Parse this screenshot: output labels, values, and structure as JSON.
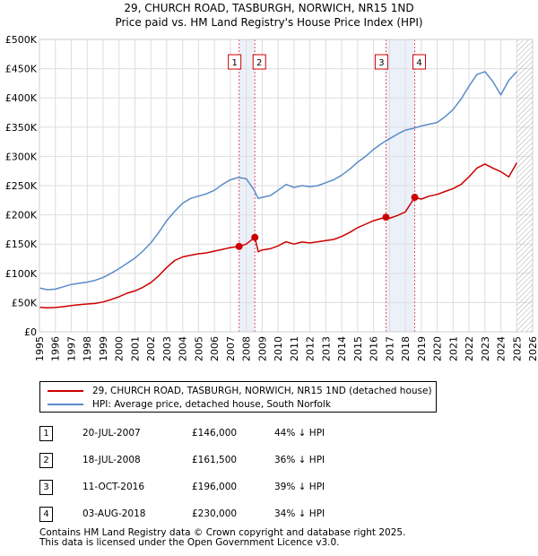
{
  "title_line1": "29, CHURCH ROAD, TASBURGH, NORWICH, NR15 1ND",
  "title_line2": "Price paid vs. HM Land Registry's House Price Index (HPI)",
  "chart_data": {
    "type": "line",
    "xlim": [
      1995,
      2026
    ],
    "ylim": [
      0,
      500000
    ],
    "y_ticks": [
      0,
      50000,
      100000,
      150000,
      200000,
      250000,
      300000,
      350000,
      400000,
      450000,
      500000
    ],
    "y_tick_labels": [
      "£0",
      "£50K",
      "£100K",
      "£150K",
      "£200K",
      "£250K",
      "£300K",
      "£350K",
      "£400K",
      "£450K",
      "£500K"
    ],
    "x_ticks": [
      1995,
      1996,
      1997,
      1998,
      1999,
      2000,
      2001,
      2002,
      2003,
      2004,
      2005,
      2006,
      2007,
      2008,
      2009,
      2010,
      2011,
      2012,
      2013,
      2014,
      2015,
      2016,
      2017,
      2018,
      2019,
      2020,
      2021,
      2022,
      2023,
      2024,
      2025,
      2026
    ],
    "x_tick_labels": [
      "1995",
      "1996",
      "1997",
      "1998",
      "1999",
      "2000",
      "2001",
      "2002",
      "2003",
      "2004",
      "2005",
      "2006",
      "2007",
      "2008",
      "2009",
      "2010",
      "2011",
      "2012",
      "2013",
      "2014",
      "2015",
      "2016",
      "2017",
      "2018",
      "2019",
      "2020",
      "2021",
      "2022",
      "2023",
      "2024",
      "2025",
      "2026"
    ],
    "grid": true,
    "forecast_from": 2025.0,
    "series": [
      {
        "name": "29, CHURCH ROAD, TASBURGH, NORWICH, NR15 1ND (detached house)",
        "color": "#cc0000",
        "x": [
          1995.0,
          1995.5,
          1996.0,
          1996.5,
          1997.0,
          1997.5,
          1998.0,
          1998.5,
          1999.0,
          1999.5,
          2000.0,
          2000.5,
          2001.0,
          2001.5,
          2002.0,
          2002.5,
          2003.0,
          2003.5,
          2004.0,
          2004.5,
          2005.0,
          2005.5,
          2006.0,
          2006.5,
          2007.0,
          2007.55,
          2008.0,
          2008.54,
          2008.75,
          2009.0,
          2009.5,
          2010.0,
          2010.5,
          2011.0,
          2011.5,
          2012.0,
          2012.5,
          2013.0,
          2013.5,
          2014.0,
          2014.5,
          2015.0,
          2015.5,
          2016.0,
          2016.5,
          2016.78,
          2017.0,
          2017.5,
          2018.0,
          2018.59,
          2019.0,
          2019.5,
          2020.0,
          2020.5,
          2021.0,
          2021.5,
          2022.0,
          2022.5,
          2023.0,
          2023.5,
          2024.0,
          2024.5,
          2025.0
        ],
        "values": [
          42000,
          41000,
          41500,
          43000,
          45000,
          46500,
          47500,
          48500,
          51000,
          55000,
          60000,
          66000,
          70000,
          76000,
          84000,
          96000,
          110000,
          122000,
          128000,
          131000,
          133500,
          135000,
          138000,
          141000,
          144000,
          146000,
          150000,
          161500,
          137000,
          140000,
          142000,
          147000,
          154000,
          150000,
          153500,
          152000,
          154000,
          156000,
          158000,
          163000,
          170000,
          178000,
          184000,
          190000,
          194000,
          196000,
          194000,
          199000,
          205000,
          230000,
          227000,
          232000,
          235000,
          240000,
          245000,
          252000,
          265000,
          280000,
          287000,
          280000,
          274000,
          265000,
          289000
        ]
      },
      {
        "name": "HPI: Average price, detached house, South Norfolk",
        "color": "#5b8cc8",
        "x": [
          1995.0,
          1995.5,
          1996.0,
          1996.5,
          1997.0,
          1997.5,
          1998.0,
          1998.5,
          1999.0,
          1999.5,
          2000.0,
          2000.5,
          2001.0,
          2001.5,
          2002.0,
          2002.5,
          2003.0,
          2003.5,
          2004.0,
          2004.5,
          2005.0,
          2005.5,
          2006.0,
          2006.5,
          2007.0,
          2007.5,
          2008.0,
          2008.5,
          2008.75,
          2009.0,
          2009.5,
          2010.0,
          2010.5,
          2011.0,
          2011.5,
          2012.0,
          2012.5,
          2013.0,
          2013.5,
          2014.0,
          2014.5,
          2015.0,
          2015.5,
          2016.0,
          2016.5,
          2017.0,
          2017.5,
          2018.0,
          2018.5,
          2019.0,
          2019.5,
          2020.0,
          2020.5,
          2021.0,
          2021.5,
          2022.0,
          2022.5,
          2023.0,
          2023.5,
          2024.0,
          2024.5,
          2025.0
        ],
        "values": [
          75000,
          72000,
          73000,
          77000,
          81000,
          83000,
          85000,
          88000,
          93000,
          100000,
          108000,
          117000,
          126000,
          138000,
          152000,
          170000,
          190000,
          206000,
          220000,
          228000,
          232000,
          236000,
          242000,
          252000,
          260000,
          264000,
          262000,
          242000,
          228000,
          230000,
          233000,
          242000,
          252000,
          247000,
          250000,
          248000,
          250000,
          255000,
          260000,
          268000,
          278000,
          290000,
          300000,
          312000,
          322000,
          330000,
          338000,
          345000,
          348000,
          352000,
          355000,
          358000,
          368000,
          380000,
          398000,
          420000,
          440000,
          445000,
          428000,
          405000,
          430000,
          445000
        ]
      }
    ],
    "transactions": [
      {
        "label": "1",
        "x": 2007.55,
        "value": 146000,
        "shade_to": 2008.54
      },
      {
        "label": "2",
        "x": 2008.54,
        "value": 161500
      },
      {
        "label": "3",
        "x": 2016.78,
        "value": 196000,
        "shade_to": 2018.59
      },
      {
        "label": "4",
        "x": 2018.59,
        "value": 230000
      }
    ]
  },
  "legend": {
    "property_label": "29, CHURCH ROAD, TASBURGH, NORWICH, NR15 1ND (detached house)",
    "hpi_label": "HPI: Average price, detached house, South Norfolk"
  },
  "table": [
    {
      "num": "1",
      "date": "20-JUL-2007",
      "price": "£146,000",
      "hpi": "44% ↓ HPI"
    },
    {
      "num": "2",
      "date": "18-JUL-2008",
      "price": "£161,500",
      "hpi": "36% ↓ HPI"
    },
    {
      "num": "3",
      "date": "11-OCT-2016",
      "price": "£196,000",
      "hpi": "39% ↓ HPI"
    },
    {
      "num": "4",
      "date": "03-AUG-2018",
      "price": "£230,000",
      "hpi": "34% ↓ HPI"
    }
  ],
  "footer_line1": "Contains HM Land Registry data © Crown copyright and database right 2025.",
  "footer_line2": "This data is licensed under the Open Government Licence v3.0."
}
